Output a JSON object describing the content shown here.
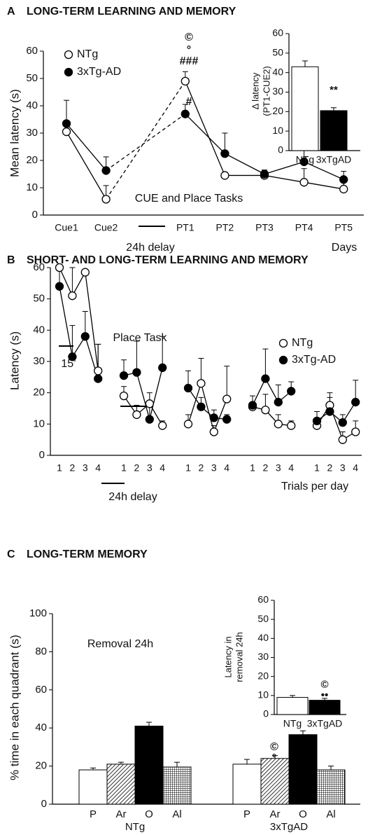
{
  "figure": {
    "panels": [
      {
        "label": "A",
        "heading": "LONG-TERM LEARNING AND MEMORY"
      },
      {
        "label": "B",
        "heading": "SHORT- AND LONG-TERM LEARNING AND MEMORY"
      },
      {
        "label": "C",
        "heading": "LONG-TERM MEMORY"
      }
    ]
  },
  "chart_data": [
    {
      "type": "line",
      "ylabel": "Mean latency (s)",
      "categories": [
        "Cue1",
        "Cue2",
        null,
        "PT1",
        "PT2",
        "PT3",
        "PT4",
        "PT5"
      ],
      "series": [
        {
          "name": "NTg",
          "color": "#ffffff",
          "values": [
            30.5,
            5.8,
            null,
            49,
            14.5,
            14.5,
            12,
            9.5
          ],
          "errors": [
            2,
            5,
            null,
            3.5,
            1,
            1,
            5,
            2.5
          ]
        },
        {
          "name": "3xTg-AD",
          "color": "#000000",
          "values": [
            33.5,
            16.3,
            null,
            37,
            22.5,
            15,
            19.5,
            13
          ],
          "errors": [
            8.5,
            5,
            null,
            3.5,
            7.5,
            1.5,
            5,
            3
          ]
        }
      ],
      "gap_line": "dashed",
      "ylim": [
        0,
        60
      ],
      "yticks": [
        0,
        10,
        20,
        30,
        40,
        50,
        60
      ],
      "annotations": [
        "©",
        "°",
        "###",
        "#",
        "CUE and Place Tasks",
        "24h delay",
        "Days"
      ]
    },
    {
      "type": "bar",
      "ylabel": [
        "Δ latency",
        "(PT1-CUE2)"
      ],
      "categories": [
        "NTg",
        "3xTgAD"
      ],
      "values": [
        43,
        20.5
      ],
      "errors": [
        3,
        1.5
      ],
      "colors": [
        "#ffffff",
        "#000000"
      ],
      "ylim": [
        0,
        60
      ],
      "yticks": [
        0,
        10,
        20,
        30,
        40,
        50,
        60
      ],
      "annotations": [
        "**"
      ]
    },
    {
      "type": "line",
      "ylabel": "Latency (s)",
      "categories": [
        "1",
        "2",
        "3",
        "4",
        null,
        "1",
        "2",
        "3",
        "4",
        null,
        "1",
        "2",
        "3",
        "4",
        null,
        "1",
        "2",
        "3",
        "4",
        null,
        "1",
        "2",
        "3",
        "4"
      ],
      "series": [
        {
          "name": "NTg",
          "color": "#ffffff",
          "values": [
            60,
            51,
            58.5,
            27,
            null,
            19,
            13,
            16.5,
            9.5,
            null,
            10,
            23,
            7.5,
            18,
            null,
            15.5,
            14.5,
            10,
            9.5,
            null,
            9.5,
            16,
            5,
            7.5
          ],
          "errors": [
            0,
            9,
            0,
            8.5,
            null,
            3,
            3,
            3.5,
            1.5,
            null,
            3,
            8,
            2,
            10.5,
            null,
            1,
            5,
            3,
            1.5,
            null,
            1,
            4,
            2.5,
            3.5
          ]
        },
        {
          "name": "3xTg-AD",
          "color": "#000000",
          "values": [
            54,
            31.5,
            38,
            24.5,
            null,
            25.5,
            26.5,
            11.5,
            28,
            null,
            21.5,
            15.5,
            12,
            11.5,
            null,
            16,
            24.5,
            17,
            20.5,
            null,
            11,
            14,
            10.5,
            17
          ],
          "errors": [
            5,
            10,
            8,
            11,
            null,
            5,
            10,
            4,
            10,
            null,
            5.5,
            3,
            2.5,
            1.5,
            null,
            3,
            9.5,
            5.5,
            3,
            null,
            3,
            4.5,
            2.5,
            7
          ]
        }
      ],
      "ylim": [
        0,
        60
      ],
      "yticks": [
        0,
        10,
        20,
        30,
        40,
        50,
        60
      ],
      "annotations": [
        "Place Task",
        "15’",
        "24h delay",
        "Trials per day"
      ]
    },
    {
      "type": "bar",
      "ylabel": "% time in each quadrant (s)",
      "categories": [
        "NTg",
        "3xTgAD"
      ],
      "series": [
        {
          "name": "P",
          "color": "#ffffff",
          "values": [
            18,
            21
          ],
          "errors": [
            1,
            2.5
          ]
        },
        {
          "name": "Ar",
          "color": "#ffffff",
          "hatch": "diagonal",
          "values": [
            21,
            24
          ],
          "errors": [
            1,
            1.5
          ]
        },
        {
          "name": "O",
          "color": "#000000",
          "values": [
            41,
            36.5
          ],
          "errors": [
            2,
            2
          ]
        },
        {
          "name": "Al",
          "color": "#ffffff",
          "hatch": "grid",
          "values": [
            19.5,
            18
          ],
          "errors": [
            2.5,
            2
          ]
        }
      ],
      "ylim": [
        0,
        100
      ],
      "yticks": [
        0,
        20,
        40,
        60,
        80,
        100
      ],
      "annotations": [
        "Removal 24h",
        "©",
        "°"
      ]
    },
    {
      "type": "bar",
      "ylabel": [
        "Latency in",
        "removal 24h"
      ],
      "categories": [
        "NTg",
        "3xTgAD"
      ],
      "values": [
        9,
        7.5
      ],
      "errors": [
        1,
        1
      ],
      "colors": [
        "#ffffff",
        "#000000"
      ],
      "ylim": [
        0,
        60
      ],
      "yticks": [
        0,
        10,
        20,
        30,
        40,
        50,
        60
      ],
      "annotations": [
        "©",
        "••"
      ]
    }
  ]
}
